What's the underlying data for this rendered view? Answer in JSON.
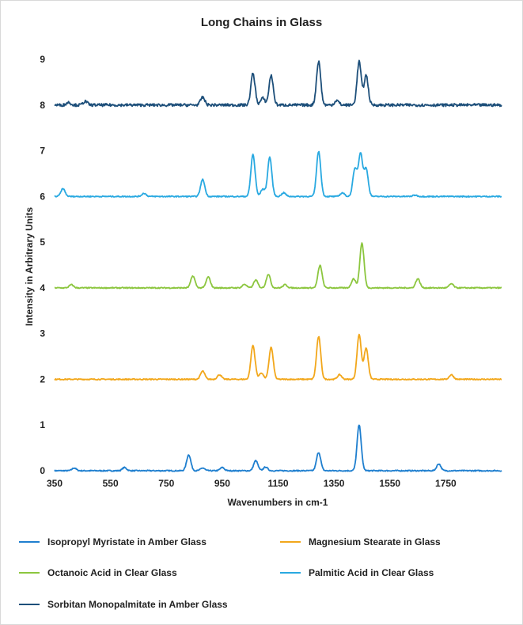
{
  "chart_data": {
    "type": "line",
    "title": "Long Chains in Glass",
    "xlabel": "Wavenumbers in cm-1",
    "ylabel": "Intensity in Arbitrary Units",
    "xlim": [
      350,
      1950
    ],
    "ylim": [
      0,
      9
    ],
    "xticks": [
      350,
      550,
      750,
      950,
      1150,
      1350,
      1550,
      1750
    ],
    "yticks": [
      0,
      1,
      2,
      3,
      4,
      5,
      6,
      7,
      8,
      9
    ],
    "grid": false,
    "legend_position": "bottom",
    "series": [
      {
        "name": "Isopropyl Myristate in Amber Glass",
        "color": "#1f7fcf",
        "baseline": 0.0,
        "peaks": [
          [
            420,
            0.06
          ],
          [
            600,
            0.07
          ],
          [
            830,
            0.35
          ],
          [
            880,
            0.06
          ],
          [
            950,
            0.07
          ],
          [
            1070,
            0.22
          ],
          [
            1105,
            0.08
          ],
          [
            1295,
            0.4
          ],
          [
            1440,
            1.0
          ],
          [
            1725,
            0.15
          ]
        ]
      },
      {
        "name": "Magnesium Stearate in Glass",
        "color": "#f2a71b",
        "baseline": 2.0,
        "peaks": [
          [
            880,
            0.18
          ],
          [
            940,
            0.1
          ],
          [
            1060,
            0.74
          ],
          [
            1090,
            0.14
          ],
          [
            1125,
            0.7
          ],
          [
            1295,
            0.93
          ],
          [
            1370,
            0.1
          ],
          [
            1440,
            0.98
          ],
          [
            1465,
            0.68
          ],
          [
            1770,
            0.1
          ]
        ]
      },
      {
        "name": "Octanoic Acid in Clear Glass",
        "color": "#8cc63f",
        "baseline": 4.0,
        "peaks": [
          [
            410,
            0.07
          ],
          [
            845,
            0.26
          ],
          [
            900,
            0.24
          ],
          [
            1030,
            0.08
          ],
          [
            1070,
            0.17
          ],
          [
            1115,
            0.3
          ],
          [
            1175,
            0.07
          ],
          [
            1300,
            0.49
          ],
          [
            1420,
            0.2
          ],
          [
            1450,
            0.98
          ],
          [
            1650,
            0.2
          ],
          [
            1770,
            0.09
          ]
        ]
      },
      {
        "name": "Palmitic Acid in Clear Glass",
        "color": "#29a9e1",
        "baseline": 6.0,
        "peaks": [
          [
            380,
            0.17
          ],
          [
            670,
            0.07
          ],
          [
            880,
            0.37
          ],
          [
            1060,
            0.92
          ],
          [
            1095,
            0.16
          ],
          [
            1120,
            0.86
          ],
          [
            1170,
            0.08
          ],
          [
            1295,
            0.98
          ],
          [
            1380,
            0.08
          ],
          [
            1425,
            0.6
          ],
          [
            1445,
            0.93
          ],
          [
            1465,
            0.6
          ],
          [
            1640,
            0.03
          ]
        ]
      },
      {
        "name": "Sorbitan Monopalmitate in Amber Glass",
        "color": "#1d4f7a",
        "baseline": 8.0,
        "peaks": [
          [
            400,
            0.06
          ],
          [
            460,
            0.08
          ],
          [
            880,
            0.17
          ],
          [
            1060,
            0.69
          ],
          [
            1095,
            0.15
          ],
          [
            1125,
            0.65
          ],
          [
            1295,
            0.95
          ],
          [
            1360,
            0.1
          ],
          [
            1440,
            0.95
          ],
          [
            1465,
            0.65
          ]
        ]
      }
    ]
  }
}
